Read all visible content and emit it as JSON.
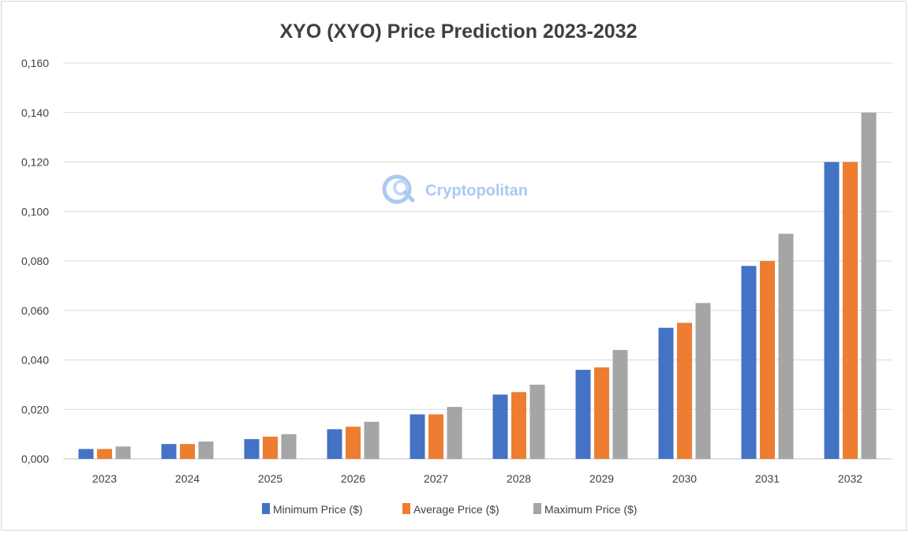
{
  "chart_data": {
    "type": "bar",
    "title": "XYO (XYO) Price Prediction 2023-2032",
    "xlabel": "",
    "ylabel": "",
    "categories": [
      "2023",
      "2024",
      "2025",
      "2026",
      "2027",
      "2028",
      "2029",
      "2030",
      "2031",
      "2032"
    ],
    "series": [
      {
        "name": "Minimum Price ($)",
        "color": "#4472c4",
        "values": [
          0.004,
          0.006,
          0.008,
          0.012,
          0.018,
          0.026,
          0.036,
          0.053,
          0.078,
          0.12
        ]
      },
      {
        "name": "Average Price ($)",
        "color": "#ed7d31",
        "values": [
          0.004,
          0.006,
          0.009,
          0.013,
          0.018,
          0.027,
          0.037,
          0.055,
          0.08,
          0.12
        ]
      },
      {
        "name": "Maximum Price ($)",
        "color": "#a5a5a5",
        "values": [
          0.005,
          0.007,
          0.01,
          0.015,
          0.021,
          0.03,
          0.044,
          0.063,
          0.091,
          0.14
        ]
      }
    ],
    "ylim": [
      0,
      0.16
    ],
    "yticks": [
      "0,000",
      "0,020",
      "0,040",
      "0,060",
      "0,080",
      "0,100",
      "0,120",
      "0,140",
      "0,160"
    ],
    "grid": true,
    "legend_position": "bottom"
  },
  "watermark": {
    "text": "Cryptopolitan",
    "color": "#9ec0ee"
  }
}
